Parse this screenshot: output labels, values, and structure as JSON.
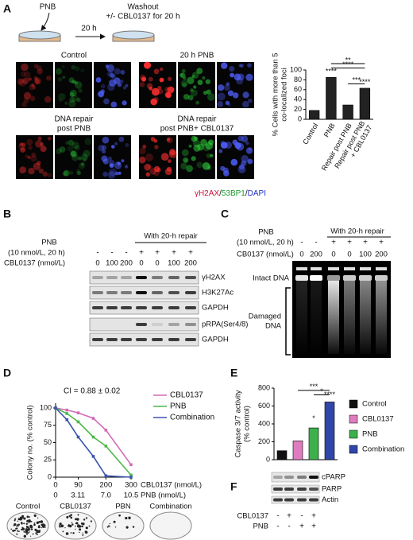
{
  "panels": {
    "A": {
      "letter": "A",
      "dish_label": "PNB",
      "step": "20 h",
      "washout": [
        "Washout",
        "+/- CBL0137 for 20 h"
      ],
      "image_labels": [
        [
          "Control"
        ],
        [
          "20 h PNB"
        ],
        [
          "DNA repair",
          "post PNB"
        ],
        [
          "DNA repair",
          "post PNB+ CBL0137"
        ]
      ],
      "stains": [
        "γH2AX",
        "53BP1",
        "DAPI"
      ],
      "stain_separator": "/"
    },
    "B": {
      "letter": "B",
      "treatment": [
        "PNB",
        "(10 nmol/L, 20 h)"
      ],
      "dose_label": "CBL0137 (nmol/L)",
      "repair": "With 20-h repair",
      "pnb_signs": [
        "-",
        "-",
        "-",
        "+",
        "+",
        "+",
        "+"
      ],
      "doses": [
        0,
        100,
        200,
        0,
        0,
        100,
        200
      ],
      "bands": [
        "γH2AX",
        "H3K27Ac",
        "GAPDH",
        "pRPA(Ser4/8)",
        "GAPDH"
      ]
    },
    "C": {
      "letter": "C",
      "treatment": [
        "PNB",
        "(10 nmol/L, 20 h)"
      ],
      "repair": "With 20-h repair",
      "pnb_signs": [
        "-",
        "-",
        "+",
        "+",
        "+",
        "+"
      ],
      "dose_label": "CB0137 (nmol/L)",
      "doses": [
        0,
        200,
        0,
        0,
        100,
        200
      ],
      "intact": "Intact DNA",
      "damaged": [
        "Damaged",
        "DNA"
      ]
    },
    "D": {
      "letter": "D",
      "plates": [
        "Control",
        "CBL0137",
        "PBN",
        "Combination"
      ]
    },
    "E": {
      "letter": "E"
    },
    "F": {
      "letter": "F",
      "bands": [
        "cPARP",
        "PARP",
        "Actin"
      ],
      "rows": [
        {
          "label": "CBL0137",
          "signs": [
            "-",
            "+",
            "-",
            "+"
          ]
        },
        {
          "label": "PNB",
          "signs": [
            "-",
            "-",
            "+",
            "+"
          ]
        }
      ]
    }
  },
  "chart_data": [
    {
      "type": "bar",
      "ylabel": "% Cells with more than 5\nco-localized foci",
      "categories": [
        "Control",
        "PNB",
        "Repair post PNB",
        "Repair post PNB\n+ CBL0137"
      ],
      "values": [
        18,
        85,
        29,
        63
      ],
      "color": "#222222",
      "ylim": [
        0,
        100
      ],
      "yticks": [
        0,
        20,
        40,
        60,
        80,
        100
      ],
      "significance": [
        "**",
        "****",
        "****",
        "***",
        "****"
      ],
      "legend": false
    },
    {
      "type": "line",
      "annotation": "CI = 0.88 ± 0.02",
      "ylabel": "Colony no. (% control)",
      "xlabel": "CBL0137 (nmol/L)",
      "x2label": "PNB (nmol/L)",
      "x": [
        0,
        45,
        90,
        150,
        200,
        300
      ],
      "series": [
        {
          "name": "CBL0137",
          "color": "#d36ab5",
          "values": [
            100,
            97,
            93,
            85,
            68,
            18
          ]
        },
        {
          "name": "PNB",
          "color": "#4cb848",
          "values": [
            100,
            92,
            80,
            58,
            45,
            3
          ]
        },
        {
          "name": "Combination",
          "color": "#3a55b0",
          "values": [
            100,
            83,
            58,
            30,
            2,
            0
          ]
        }
      ],
      "xlim": [
        0,
        300
      ],
      "xticks": [
        0,
        90,
        200,
        300
      ],
      "x2lim": [
        0,
        10.5
      ],
      "x2ticks": [
        0,
        3.11,
        {
          "value": 7,
          "label": "7.0"
        },
        10.5
      ],
      "ylim": [
        0,
        100
      ],
      "yticks": [
        0,
        25,
        50,
        75,
        100
      ],
      "legend_position": "right"
    },
    {
      "type": "bar",
      "ylabel": "Caspase 3/7 activity\n(% control)",
      "categories": [
        "Control",
        "CBL0137",
        "PNB",
        "Combination"
      ],
      "values": [
        100,
        210,
        355,
        645
      ],
      "colors": [
        "#111111",
        "#e07bc0",
        "#3cb04a",
        "#3046a8"
      ],
      "ylim": [
        0,
        800
      ],
      "yticks": [
        0,
        200,
        400,
        600,
        800
      ],
      "significance": [
        "***",
        "*",
        "*",
        "****"
      ],
      "legend": true
    }
  ]
}
